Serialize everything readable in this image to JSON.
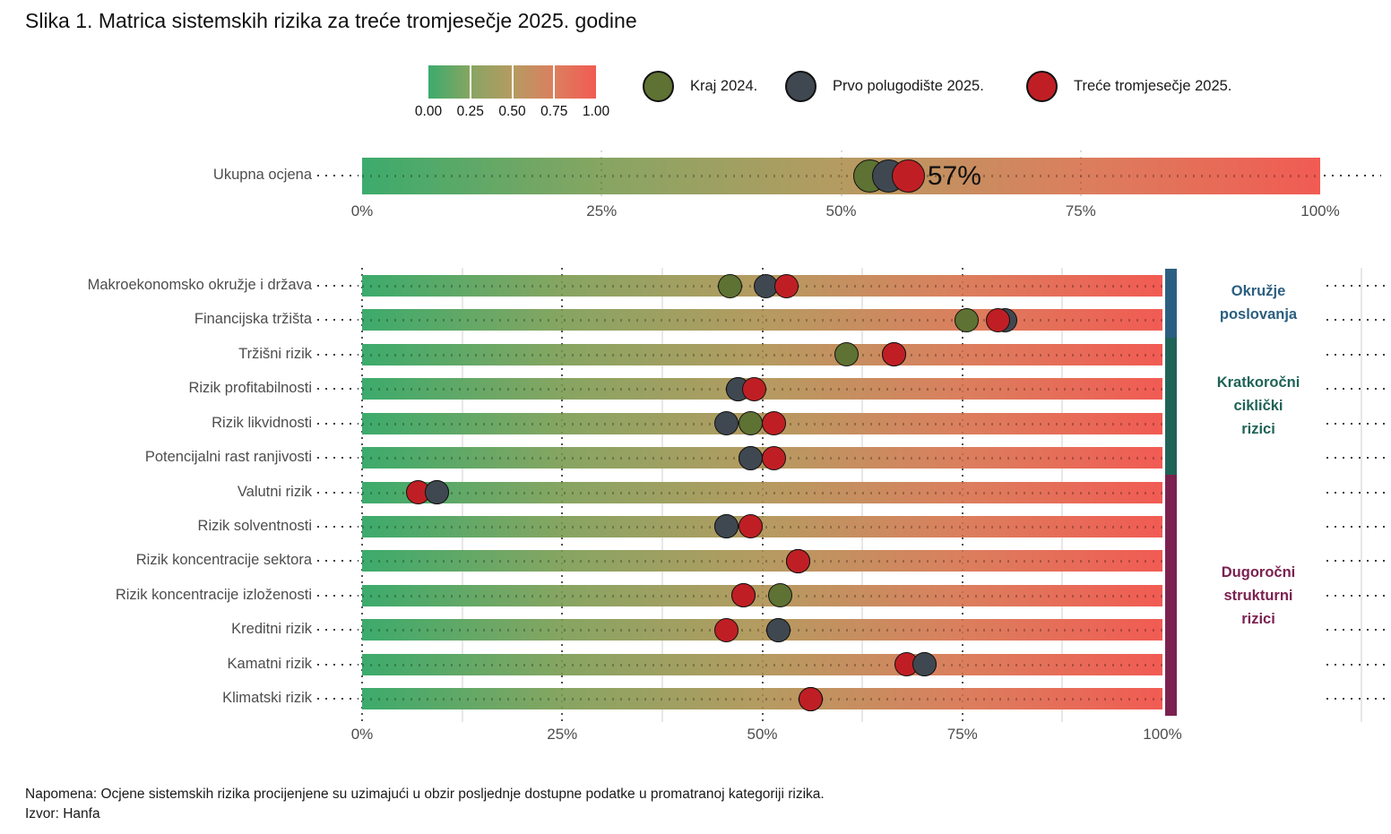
{
  "title": "Slika 1. Matrica sistemskih rizika za treće tromjesečje 2025. godine",
  "note_line1": "Napomena: Ocjene sistemskih rizika procijenjene su uzimajući u obzir posljednje dostupne podatke u promatranoj kategoriji rizika.",
  "note_line2": "Izvor: Hanfa",
  "colors": {
    "kraj_2024": "#5e7233",
    "prvo_polugodiste_2025": "#3f4850",
    "trece_tromjesecje_2025": "#bf1f24",
    "marker_stroke": "#111111",
    "gradient_stops": [
      "#3cab6c",
      "#87a562",
      "#b59b61",
      "#db7f5e",
      "#f15b53"
    ],
    "category_okruzje": "#2b5f80",
    "category_kratkorocni": "#1f6357",
    "category_dugorocni": "#7b2150",
    "axis_text": "#4d4d4d"
  },
  "legend": {
    "colorbar_ticks": [
      "0.00",
      "0.25",
      "0.50",
      "0.75",
      "1.00"
    ],
    "items": [
      {
        "label": "Kraj 2024.",
        "series": "kraj_2024"
      },
      {
        "label": "Prvo polugodište 2025.",
        "series": "prvo_polugodiste_2025"
      },
      {
        "label": "Treće tromjesečje 2025.",
        "series": "trece_tromjesecje_2025"
      }
    ]
  },
  "chart_data": [
    {
      "type": "bar",
      "subtype": "gradient-bullet",
      "title": "Ukupna ocjena",
      "x_ticks": [
        "0%",
        "25%",
        "50%",
        "75%",
        "100%"
      ],
      "xlim": [
        0,
        100
      ],
      "annotation": "57%",
      "series": [
        {
          "name": "Kraj 2024.",
          "key": "kraj_2024",
          "value": 53
        },
        {
          "name": "Prvo polugodište 2025.",
          "key": "prvo_polugodiste_2025",
          "value": 55
        },
        {
          "name": "Treće tromjesečje 2025.",
          "key": "trece_tromjesecje_2025",
          "value": 57
        }
      ]
    },
    {
      "type": "bar",
      "subtype": "gradient-bullet-matrix",
      "x_ticks": [
        "0%",
        "25%",
        "50%",
        "75%",
        "100%"
      ],
      "xlim": [
        0,
        100
      ],
      "rows": [
        {
          "label": "Makroekonomsko okružje i država",
          "kraj_2024": 46,
          "prvo_polugodiste_2025": 50.5,
          "trece_tromjesecje_2025": 53,
          "draw_order": [
            "kraj_2024",
            "prvo_polugodiste_2025",
            "trece_tromjesecje_2025"
          ]
        },
        {
          "label": "Financijska tržišta",
          "kraj_2024": 75.5,
          "prvo_polugodiste_2025": 80.3,
          "trece_tromjesecje_2025": 79.5,
          "draw_order": [
            "kraj_2024",
            "prvo_polugodiste_2025",
            "trece_tromjesecje_2025"
          ]
        },
        {
          "label": "Tržišni rizik",
          "kraj_2024": 60.5,
          "prvo_polugodiste_2025": 66.5,
          "trece_tromjesecje_2025": 66.5,
          "draw_order": [
            "kraj_2024",
            "prvo_polugodiste_2025",
            "trece_tromjesecje_2025"
          ]
        },
        {
          "label": "Rizik profitabilnosti",
          "kraj_2024": 47,
          "prvo_polugodiste_2025": 47,
          "trece_tromjesecje_2025": 49,
          "draw_order": [
            "kraj_2024",
            "prvo_polugodiste_2025",
            "trece_tromjesecje_2025"
          ]
        },
        {
          "label": "Rizik likvidnosti",
          "kraj_2024": 48.5,
          "prvo_polugodiste_2025": 45.5,
          "trece_tromjesecje_2025": 51.5,
          "draw_order": [
            "kraj_2024",
            "prvo_polugodiste_2025",
            "trece_tromjesecje_2025"
          ]
        },
        {
          "label": "Potencijalni rast ranjivosti",
          "kraj_2024": 48.5,
          "prvo_polugodiste_2025": 48.5,
          "trece_tromjesecje_2025": 51.5,
          "draw_order": [
            "kraj_2024",
            "prvo_polugodiste_2025",
            "trece_tromjesecje_2025"
          ]
        },
        {
          "label": "Valutni rizik",
          "kraj_2024": 9.3,
          "prvo_polugodiste_2025": 9.3,
          "trece_tromjesecje_2025": 7,
          "draw_order": [
            "kraj_2024",
            "trece_tromjesecje_2025",
            "prvo_polugodiste_2025"
          ]
        },
        {
          "label": "Rizik solventnosti",
          "kraj_2024": 45.5,
          "prvo_polugodiste_2025": 45.5,
          "trece_tromjesecje_2025": 48.5,
          "draw_order": [
            "kraj_2024",
            "prvo_polugodiste_2025",
            "trece_tromjesecje_2025"
          ]
        },
        {
          "label": "Rizik koncentracije sektora",
          "kraj_2024": 54.5,
          "prvo_polugodiste_2025": 54.5,
          "trece_tromjesecje_2025": 54.5,
          "draw_order": [
            "kraj_2024",
            "prvo_polugodiste_2025",
            "trece_tromjesecje_2025"
          ]
        },
        {
          "label": "Rizik koncentracije izloženosti",
          "kraj_2024": 52.2,
          "prvo_polugodiste_2025": 47.7,
          "trece_tromjesecje_2025": 47.7,
          "draw_order": [
            "kraj_2024",
            "prvo_polugodiste_2025",
            "trece_tromjesecje_2025"
          ]
        },
        {
          "label": "Kreditni rizik",
          "kraj_2024": 52,
          "prvo_polugodiste_2025": 52,
          "trece_tromjesecje_2025": 45.5,
          "draw_order": [
            "kraj_2024",
            "prvo_polugodiste_2025",
            "trece_tromjesecje_2025"
          ]
        },
        {
          "label": "Kamatni rizik",
          "kraj_2024": 70.3,
          "prvo_polugodiste_2025": 70.3,
          "trece_tromjesecje_2025": 68,
          "draw_order": [
            "kraj_2024",
            "trece_tromjesecje_2025",
            "prvo_polugodiste_2025"
          ]
        },
        {
          "label": "Klimatski rizik",
          "kraj_2024": 56,
          "prvo_polugodiste_2025": 56,
          "trece_tromjesecje_2025": 56,
          "draw_order": [
            "kraj_2024",
            "prvo_polugodiste_2025",
            "trece_tromjesecje_2025"
          ]
        }
      ],
      "categories": [
        {
          "label_lines": [
            "Okružje",
            "poslovanja"
          ],
          "first_row": 0,
          "last_row": 1,
          "color_key": "category_okruzje"
        },
        {
          "label_lines": [
            "Kratkoročni",
            "ciklički",
            "rizici"
          ],
          "first_row": 2,
          "last_row": 5,
          "color_key": "category_kratkorocni"
        },
        {
          "label_lines": [
            "Dugoročni",
            "strukturni",
            "rizici"
          ],
          "first_row": 6,
          "last_row": 12,
          "color_key": "category_dugorocni"
        }
      ]
    }
  ]
}
